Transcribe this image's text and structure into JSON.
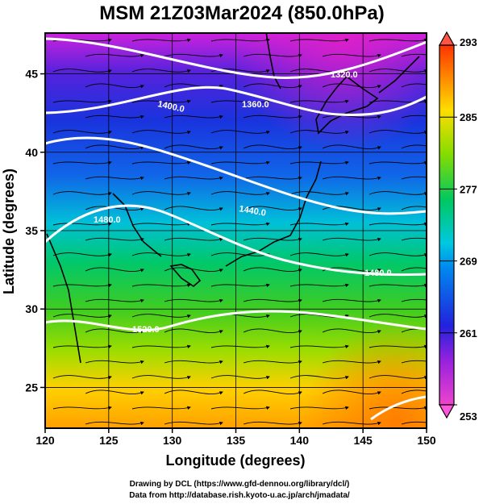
{
  "title": "MSM 21Z03Mar2024 (850.0hPa)",
  "x_axis": {
    "label": "Longitude (degrees)",
    "range": [
      120,
      150
    ],
    "ticks": [
      "120",
      "125",
      "130",
      "135",
      "140",
      "145",
      "150"
    ]
  },
  "y_axis": {
    "label": "Latitude  (degrees)",
    "range": [
      22.4,
      47.6
    ],
    "ticks": [
      "25",
      "30",
      "35",
      "40",
      "45"
    ]
  },
  "colorbar": {
    "min": 253,
    "max": 293,
    "ticks": [
      "253",
      "261",
      "269",
      "277",
      "285",
      "293"
    ],
    "colors": [
      "#ee44cc",
      "#9922dd",
      "#2222dd",
      "#00c8e0",
      "#00c860",
      "#88dd00",
      "#ffdd00",
      "#ff8800",
      "#ff3300"
    ]
  },
  "contours": {
    "color": "#ffffff",
    "labels": [
      "1320.0",
      "1360.0",
      "1400.0",
      "1440.0",
      "1480.0",
      "1480.0",
      "1520.0"
    ]
  },
  "credits": {
    "line1": "Drawing by DCL (https://www.gfd-dennou.org/library/dcl/)",
    "line2": "Data from http://database.rish.kyoto-u.ac.jp/arch/jmadata/"
  }
}
